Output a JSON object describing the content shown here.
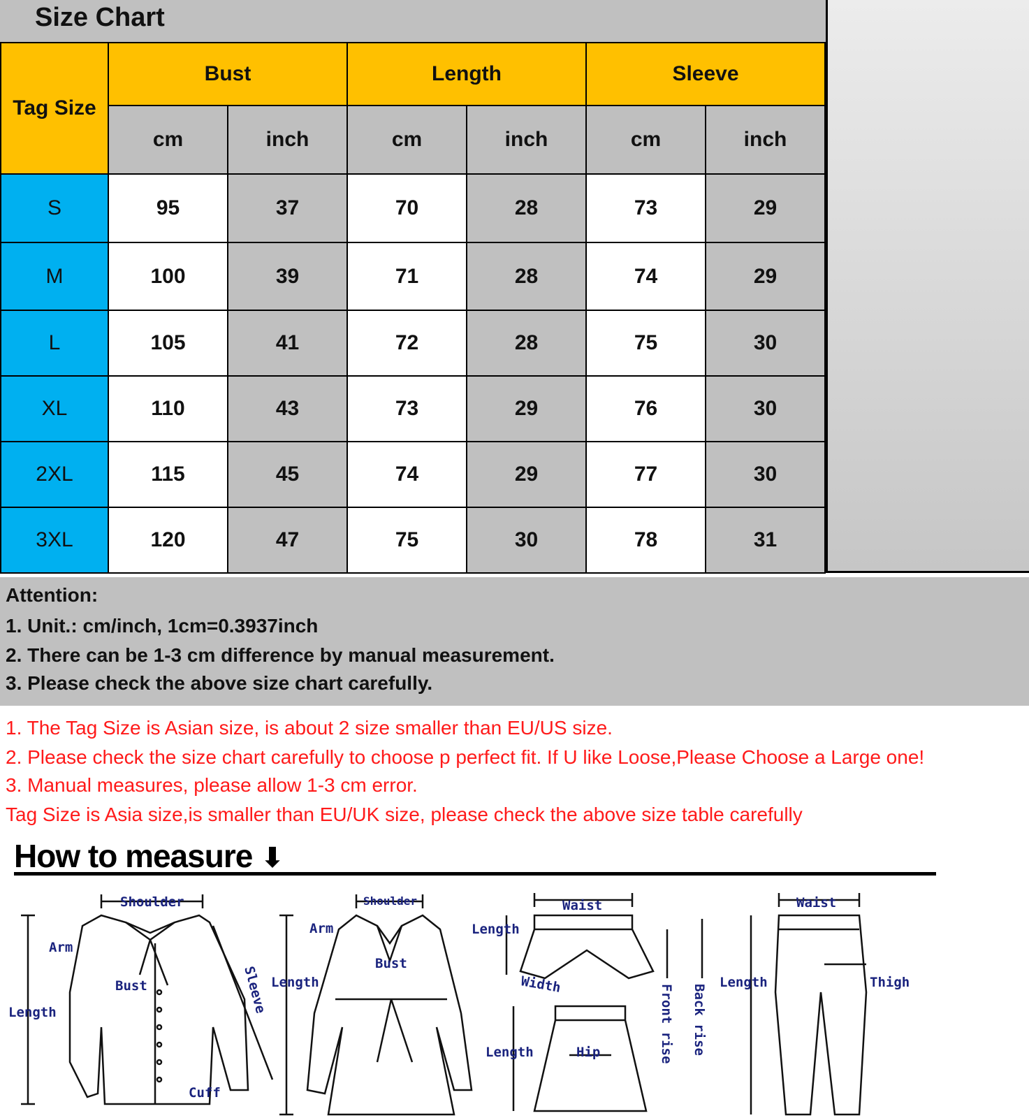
{
  "title": "Size Chart",
  "table": {
    "tag_size_label": "Tag Size",
    "groups": [
      "Bust",
      "Length",
      "Sleeve"
    ],
    "units": [
      "cm",
      "inch",
      "cm",
      "inch",
      "cm",
      "inch"
    ],
    "rows": [
      {
        "size": "S",
        "values": [
          "95",
          "37",
          "70",
          "28",
          "73",
          "29"
        ]
      },
      {
        "size": "M",
        "values": [
          "100",
          "39",
          "71",
          "28",
          "74",
          "29"
        ]
      },
      {
        "size": "L",
        "values": [
          "105",
          "41",
          "72",
          "28",
          "75",
          "30"
        ]
      },
      {
        "size": "XL",
        "values": [
          "110",
          "43",
          "73",
          "29",
          "76",
          "30"
        ]
      },
      {
        "size": "2XL",
        "values": [
          "115",
          "45",
          "74",
          "29",
          "77",
          "30"
        ]
      },
      {
        "size": "3XL",
        "values": [
          "120",
          "47",
          "75",
          "30",
          "78",
          "31"
        ]
      }
    ]
  },
  "attention": {
    "heading": "Attention:",
    "lines": [
      "1. Unit.:  cm/inch, 1cm=0.3937inch",
      "2. There can be 1-3 cm difference by manual measurement.",
      "3. Please check the above size chart carefully."
    ]
  },
  "notes": [
    "1. The Tag Size is Asian size, is about 2 size smaller than EU/US size.",
    "2. Please check the size chart carefully to choose p perfect fit. If U like Loose,Please Choose a Large one!",
    "3. Manual measures, please allow 1-3 cm error.",
    "Tag Size is Asia size,is smaller than EU/UK size, please check the above size table carefully"
  ],
  "how_to_measure": {
    "heading": "How to measure",
    "shirt": {
      "shoulder": "Shoulder",
      "arm": "Arm",
      "bust": "Bust",
      "length": "Length",
      "sleeve": "Sleeve",
      "cuff": "Cuff"
    },
    "coat": {
      "shoulder": "Shoulder",
      "arm": "Arm",
      "bust": "Bust",
      "length": "Length"
    },
    "shorts": {
      "waist": "Waist",
      "length": "Length",
      "width": "Width",
      "front_rise": "Front rise",
      "back_rise": "Back rise"
    },
    "skirt": {
      "length": "Length",
      "hip": "Hip"
    },
    "pants": {
      "waist": "Waist",
      "length": "Length",
      "thigh": "Thigh"
    }
  },
  "colors": {
    "header_yellow": "#ffc000",
    "size_blue": "#00b0f0",
    "grey": "#c0c0c0",
    "note_red": "#ff1a1a",
    "label_navy": "#1a237e"
  }
}
